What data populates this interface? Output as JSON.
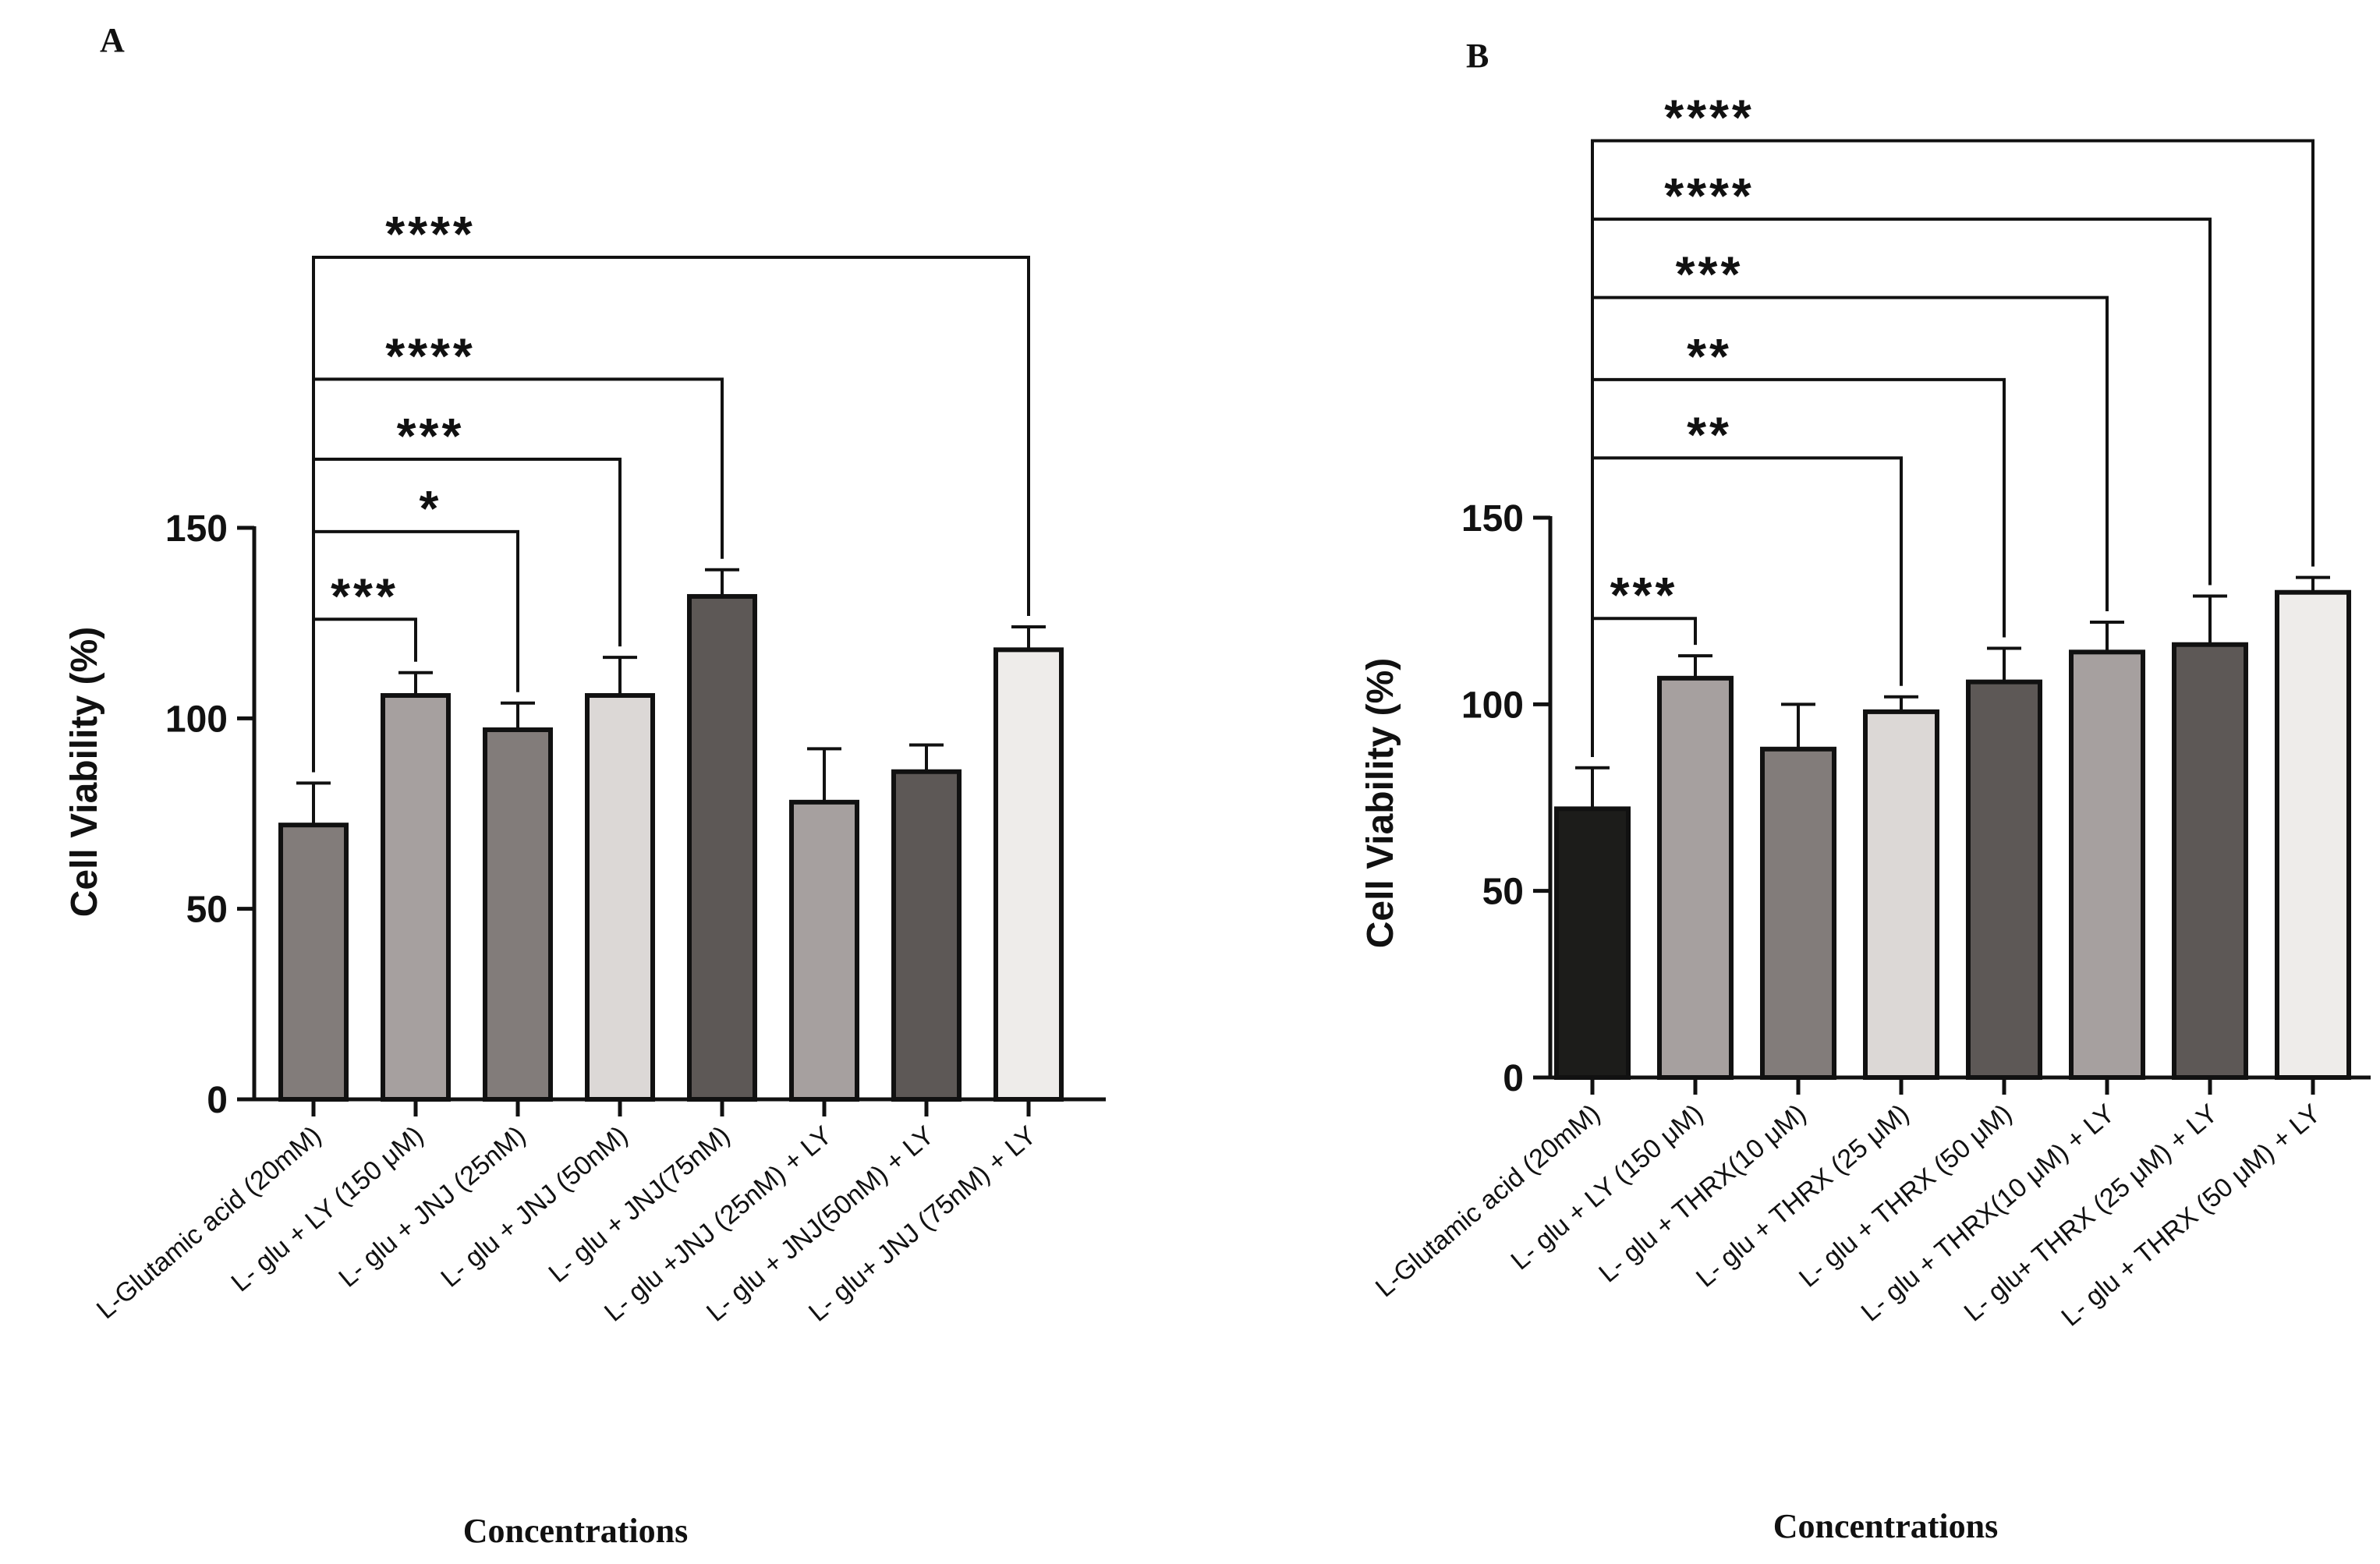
{
  "chart_data": [
    {
      "panel_label": "A",
      "type": "bar",
      "ylabel": "Cell Viability (%)",
      "xlabel": "Concentrations",
      "ylim": [
        0,
        150
      ],
      "yticks": [
        0,
        50,
        100,
        150
      ],
      "categories": [
        "L-Glutamic acid (20mM)",
        "L- glu + LY (150 μM)",
        "L- glu + JNJ (25nM)",
        "L- glu + JNJ (50nM)",
        "L- glu + JNJ(75nM)",
        "L- glu +JNJ (25nM) + LY",
        "L- glu + JNJ(50nM) + LY",
        "L- glu+ JNJ (75nM) + LY"
      ],
      "values": [
        72,
        106,
        97,
        106,
        132,
        78,
        86,
        118
      ],
      "errors": [
        11,
        6,
        7,
        10,
        7,
        14,
        7,
        6
      ],
      "colors": [
        "#827c7a",
        "#a6a09f",
        "#827c7a",
        "#dcd8d6",
        "#5d5856",
        "#a6a09f",
        "#5d5856",
        "#eeecea"
      ],
      "significance": [
        {
          "from": 0,
          "to": 1,
          "label": "***",
          "y": 126
        },
        {
          "from": 0,
          "to": 2,
          "label": "*",
          "y": 149
        },
        {
          "from": 0,
          "to": 3,
          "label": "***",
          "y": 168
        },
        {
          "from": 0,
          "to": 4,
          "label": "****",
          "y": 189
        },
        {
          "from": 0,
          "to": 7,
          "label": "****",
          "y": 221
        }
      ]
    },
    {
      "panel_label": "B",
      "type": "bar",
      "ylabel": "Cell Viability (%)",
      "xlabel": "Concentrations",
      "ylim": [
        0,
        150
      ],
      "yticks": [
        0,
        50,
        100,
        150
      ],
      "categories": [
        "L-Glutamic acid (20mM)",
        "L- glu + LY (150 μM)",
        "L- glu + THRX(10 μM)",
        "L- glu + THRX (25 μM)",
        "L- glu + THRX (50 μM)",
        "L- glu + THRX(10 μM) + LY",
        "L- glu+ THRX (25 μM) + LY",
        "L- glu + THRX (50 μM) + LY"
      ],
      "values": [
        72,
        107,
        88,
        98,
        106,
        114,
        116,
        130
      ],
      "errors": [
        11,
        6,
        12,
        4,
        9,
        8,
        13,
        4
      ],
      "colors": [
        "#1c1c1a",
        "#a6a09f",
        "#827c7a",
        "#dcd8d6",
        "#5d5856",
        "#a6a09f",
        "#5d5856",
        "#eeecea"
      ],
      "significance": [
        {
          "from": 0,
          "to": 1,
          "label": "***",
          "y": 123
        },
        {
          "from": 0,
          "to": 3,
          "label": "**",
          "y": 166
        },
        {
          "from": 0,
          "to": 4,
          "label": "**",
          "y": 187
        },
        {
          "from": 0,
          "to": 5,
          "label": "***",
          "y": 209
        },
        {
          "from": 0,
          "to": 6,
          "label": "****",
          "y": 230
        },
        {
          "from": 0,
          "to": 7,
          "label": "****",
          "y": 251
        }
      ]
    }
  ]
}
